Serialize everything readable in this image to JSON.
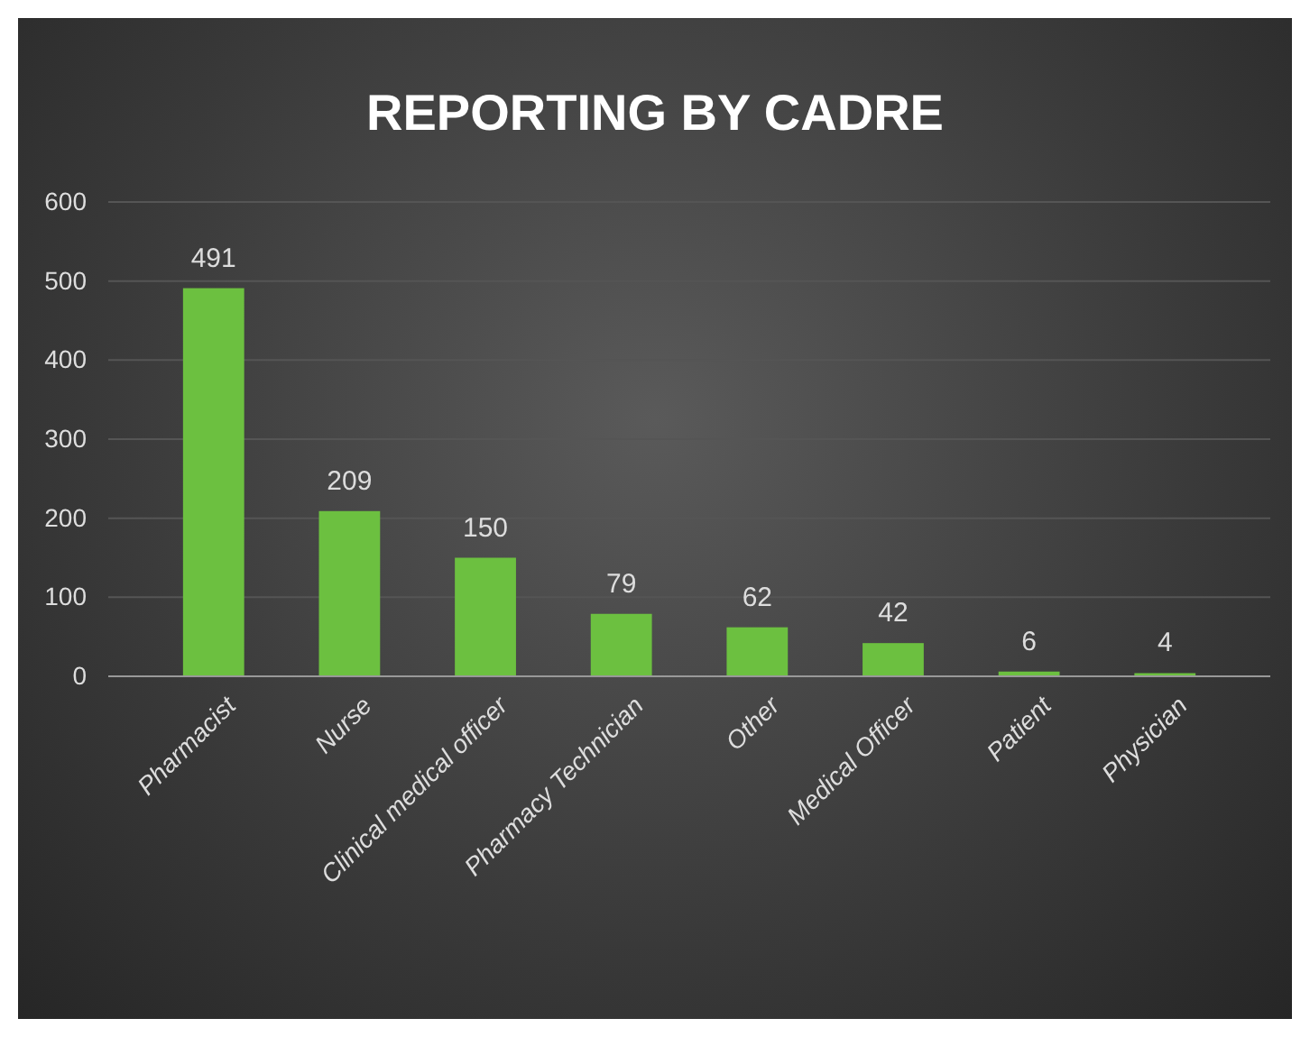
{
  "chart_data": {
    "type": "bar",
    "title": "REPORTING BY CADRE",
    "categories": [
      "Pharmacist",
      "Nurse",
      "Clinical medical officer",
      "Pharmacy Technician",
      "Other",
      "Medical Officer",
      "Patient",
      "Physician"
    ],
    "values": [
      491,
      209,
      150,
      79,
      62,
      42,
      6,
      4
    ],
    "color": "#6cc040",
    "ylim": [
      0,
      600
    ],
    "yticks": [
      0,
      100,
      200,
      300,
      400,
      500,
      600
    ],
    "grid": "y",
    "data_labels": true
  }
}
